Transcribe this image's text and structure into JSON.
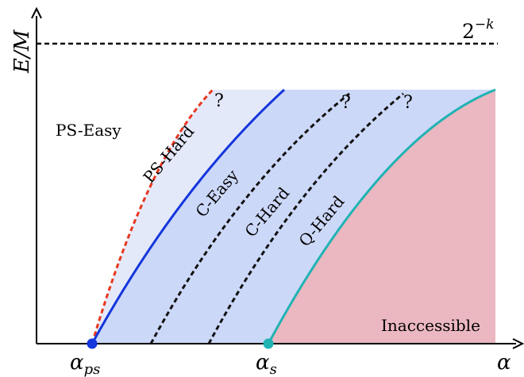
{
  "axes": {
    "y_label": "E/M",
    "x_label": "α",
    "x_ticks": [
      {
        "id": "alpha-ps",
        "base": "α",
        "sub": "ps",
        "color": "#1436dc"
      },
      {
        "id": "alpha-s",
        "base": "α",
        "sub": "s",
        "color": "#1fb3b3"
      }
    ]
  },
  "threshold": {
    "label_base": "2",
    "label_exp": "−k"
  },
  "regions": {
    "ps_easy": "PS-Easy",
    "ps_hard": "PS-Hard",
    "c_easy": "C-Easy",
    "c_hard": "C-Hard",
    "q_hard": "Q-Hard",
    "inaccessible": "Inaccessible"
  },
  "unknown_marker": "?",
  "colors": {
    "ps_easy_boundary": "#e8371f",
    "ps_hard_boundary": "#1436dc",
    "c_boundaries": "#111111",
    "inaccessible_boundary": "#1fb3b3",
    "light_band": "#e4e9fa",
    "mid_band": "#ccd8f8",
    "inaccessible_fill": "#ebb7c0"
  }
}
